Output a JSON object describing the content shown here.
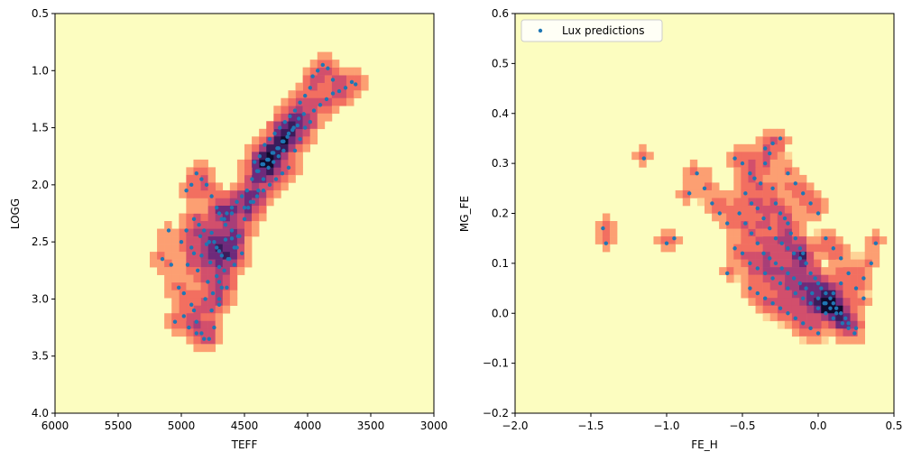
{
  "chart_data": [
    {
      "type": "scatter",
      "background": "2D histogram (density) with scatter overlay",
      "xlabel": "TEFF",
      "ylabel": "LOGG",
      "xlim": [
        6000,
        3000
      ],
      "ylim": [
        4.0,
        0.5
      ],
      "x_inverted": true,
      "y_inverted": true,
      "xticks": [
        "6000",
        "5500",
        "5000",
        "4500",
        "4000",
        "3500",
        "3000"
      ],
      "yticks": [
        "0.5",
        "1.0",
        "1.5",
        "2.0",
        "2.5",
        "3.0",
        "3.5",
        "4.0"
      ],
      "xtick_values": [
        6000,
        5500,
        5000,
        4500,
        4000,
        3500,
        3000
      ],
      "ytick_values": [
        0.5,
        1.0,
        1.5,
        2.0,
        2.5,
        3.0,
        3.5,
        4.0
      ],
      "legend": [],
      "series": [
        {
          "x": [
            4850,
            4780,
            4720,
            4650,
            4900,
            4760,
            4800,
            4700,
            4680,
            4820,
            4740,
            4600,
            4950,
            4870,
            4720,
            4790,
            4680,
            4750,
            4810,
            4700,
            4630,
            4560,
            4900,
            4980,
            5050,
            4940,
            4880,
            4820,
            4760,
            4700,
            4640,
            4580,
            4520,
            4860,
            4900,
            4960,
            5000,
            4920,
            4840,
            4770,
            4700,
            4660,
            4600,
            4500,
            4450,
            4400,
            4350,
            4300,
            4250,
            4200,
            4150,
            4100,
            4060,
            4020,
            3980,
            3950,
            3900,
            3850,
            3800,
            3750,
            3700,
            3650,
            3620,
            4420,
            4380,
            4340,
            4300,
            4260,
            4220,
            4180,
            4140,
            4100,
            4060,
            4020,
            3980,
            4480,
            4520,
            4560,
            4600,
            4640,
            4680,
            4440,
            4400,
            4360,
            4320,
            4280,
            4240,
            4200,
            4160,
            4120,
            4080,
            5100,
            5150,
            5080,
            5020,
            4980,
            4920,
            4880,
            4840,
            4780,
            4740,
            4700,
            4660,
            4620,
            4580,
            4540,
            4720,
            4760,
            4800,
            4840,
            4880,
            4920,
            4960,
            4700,
            4650,
            4600,
            4550,
            4500,
            4470,
            4430,
            4390,
            4350,
            4310,
            4270,
            4230,
            4190,
            3960,
            3920,
            3880,
            3840,
            3800,
            4030,
            4070,
            4110,
            4150,
            4190,
            4230,
            4270,
            4310,
            4350,
            4390
          ],
          "y": [
            2.45,
            2.5,
            2.55,
            2.48,
            2.6,
            2.42,
            2.52,
            2.58,
            2.62,
            2.4,
            2.5,
            2.47,
            2.7,
            2.75,
            2.8,
            2.85,
            2.9,
            2.95,
            3.0,
            3.05,
            2.65,
            2.55,
            3.1,
            3.15,
            3.2,
            3.25,
            3.3,
            3.35,
            3.1,
            3.0,
            2.9,
            2.7,
            2.6,
            2.35,
            2.3,
            2.4,
            2.5,
            2.55,
            2.62,
            2.68,
            2.72,
            2.3,
            2.25,
            2.2,
            2.15,
            2.1,
            2.05,
            2.0,
            1.95,
            1.9,
            1.85,
            1.7,
            1.6,
            1.5,
            1.45,
            1.35,
            1.3,
            1.25,
            1.2,
            1.18,
            1.15,
            1.1,
            1.12,
            1.8,
            1.75,
            1.65,
            1.6,
            1.55,
            1.5,
            1.45,
            1.4,
            1.35,
            1.28,
            1.22,
            1.15,
            2.05,
            2.1,
            2.15,
            2.2,
            2.25,
            2.3,
            1.95,
            1.88,
            1.82,
            1.78,
            1.72,
            1.68,
            1.62,
            1.58,
            1.52,
            1.48,
            2.4,
            2.65,
            2.7,
            2.9,
            2.95,
            3.05,
            3.2,
            3.3,
            3.35,
            3.25,
            2.85,
            2.75,
            2.65,
            2.55,
            2.45,
            2.2,
            2.1,
            2.0,
            1.95,
            1.9,
            2.0,
            2.05,
            2.25,
            2.35,
            2.4,
            2.45,
            2.3,
            2.2,
            2.15,
            2.05,
            1.95,
            1.85,
            1.8,
            1.75,
            1.7,
            1.05,
            1.0,
            0.95,
            0.98,
            1.08,
            1.38,
            1.42,
            1.5,
            1.55,
            1.62,
            1.68,
            1.72,
            1.78,
            1.82,
            1.88
          ],
          "color": "#1f77b4"
        }
      ]
    },
    {
      "type": "scatter",
      "background": "2D histogram (density) with scatter overlay",
      "xlabel": "FE_H",
      "ylabel": "MG_FE",
      "xlim": [
        -2.0,
        0.5
      ],
      "ylim": [
        -0.2,
        0.6
      ],
      "xticks": [
        "−2.0",
        "−1.5",
        "−1.0",
        "−0.5",
        "0.0",
        "0.5"
      ],
      "yticks": [
        "−0.2",
        "−0.1",
        "0.0",
        "0.1",
        "0.2",
        "0.3",
        "0.4",
        "0.5",
        "0.6"
      ],
      "xtick_values": [
        -2.0,
        -1.5,
        -1.0,
        -0.5,
        0.0,
        0.5
      ],
      "ytick_values": [
        -0.2,
        -0.1,
        0.0,
        0.1,
        0.2,
        0.3,
        0.4,
        0.5,
        0.6
      ],
      "legend": [
        "Lux predictions"
      ],
      "legend_position": "top-left",
      "series": [
        {
          "name": "Lux predictions",
          "x": [
            -1.42,
            -1.4,
            -1.15,
            -1.0,
            -0.95,
            -0.85,
            -0.8,
            -0.75,
            -0.7,
            -0.65,
            -0.6,
            -0.55,
            -0.5,
            -0.45,
            -0.42,
            -0.38,
            -0.35,
            -0.32,
            -0.3,
            -0.28,
            -0.25,
            -0.22,
            -0.2,
            -0.18,
            -0.15,
            -0.12,
            -0.1,
            -0.08,
            -0.05,
            -0.02,
            0.0,
            0.02,
            0.05,
            0.08,
            0.1,
            0.12,
            0.15,
            0.18,
            0.2,
            0.25,
            0.3,
            0.35,
            0.38,
            -0.55,
            -0.5,
            -0.45,
            -0.4,
            -0.35,
            -0.3,
            -0.25,
            -0.2,
            -0.15,
            -0.1,
            -0.05,
            0.0,
            0.05,
            0.1,
            -0.6,
            -0.52,
            -0.48,
            -0.44,
            -0.4,
            -0.36,
            -0.32,
            -0.28,
            -0.24,
            -0.2,
            -0.16,
            -0.12,
            -0.08,
            -0.04,
            0.0,
            0.04,
            0.08,
            0.12,
            0.16,
            0.2,
            0.24,
            -0.35,
            -0.3,
            -0.25,
            -0.2,
            -0.15,
            -0.1,
            -0.05,
            0.0,
            0.05,
            0.1,
            0.15,
            -0.48,
            -0.44,
            -0.4,
            -0.36,
            -0.32,
            -0.28,
            -0.24,
            -0.2,
            -0.16,
            -0.12,
            -0.08,
            -0.45,
            -0.4,
            -0.35,
            -0.3,
            -0.25,
            -0.2,
            -0.15,
            -0.1,
            -0.05,
            0.0,
            0.05,
            0.1,
            0.15,
            0.2,
            0.25,
            0.3
          ],
          "y": [
            0.17,
            0.14,
            0.31,
            0.14,
            0.15,
            0.24,
            0.28,
            0.25,
            0.22,
            0.2,
            0.18,
            0.31,
            0.3,
            0.28,
            0.27,
            0.26,
            0.3,
            0.32,
            0.25,
            0.22,
            0.2,
            0.19,
            0.18,
            0.16,
            0.15,
            0.13,
            0.12,
            0.1,
            0.08,
            0.07,
            0.06,
            0.05,
            0.04,
            0.03,
            0.02,
            0.01,
            0.0,
            -0.01,
            -0.02,
            -0.03,
            0.03,
            0.1,
            0.14,
            0.13,
            0.12,
            0.1,
            0.09,
            0.08,
            0.07,
            0.06,
            0.05,
            0.04,
            0.03,
            0.02,
            0.01,
            0.0,
            -0.01,
            0.08,
            0.2,
            0.18,
            0.16,
            0.14,
            0.12,
            0.11,
            0.1,
            0.09,
            0.08,
            0.07,
            0.06,
            0.05,
            0.04,
            0.03,
            0.02,
            0.01,
            0.0,
            -0.02,
            -0.03,
            -0.04,
            0.33,
            0.34,
            0.35,
            0.28,
            0.26,
            0.24,
            0.22,
            0.2,
            0.15,
            0.13,
            0.11,
            0.24,
            0.22,
            0.21,
            0.19,
            0.17,
            0.15,
            0.14,
            0.13,
            0.12,
            0.11,
            0.1,
            0.05,
            0.04,
            0.03,
            0.02,
            0.01,
            0.0,
            -0.01,
            -0.02,
            -0.03,
            -0.04,
            0.02,
            0.04,
            0.06,
            0.08,
            0.05,
            0.07
          ],
          "color": "#1f77b4"
        }
      ]
    }
  ],
  "colors": {
    "hist_background": "#fcfdc0",
    "hist_levels": [
      "#fed497",
      "#fc9f72",
      "#f26f60",
      "#d24f6c",
      "#a83e78",
      "#6e2a7b",
      "#3a1c5c",
      "#0f0b2e"
    ],
    "scatter": "#1f77b4"
  }
}
